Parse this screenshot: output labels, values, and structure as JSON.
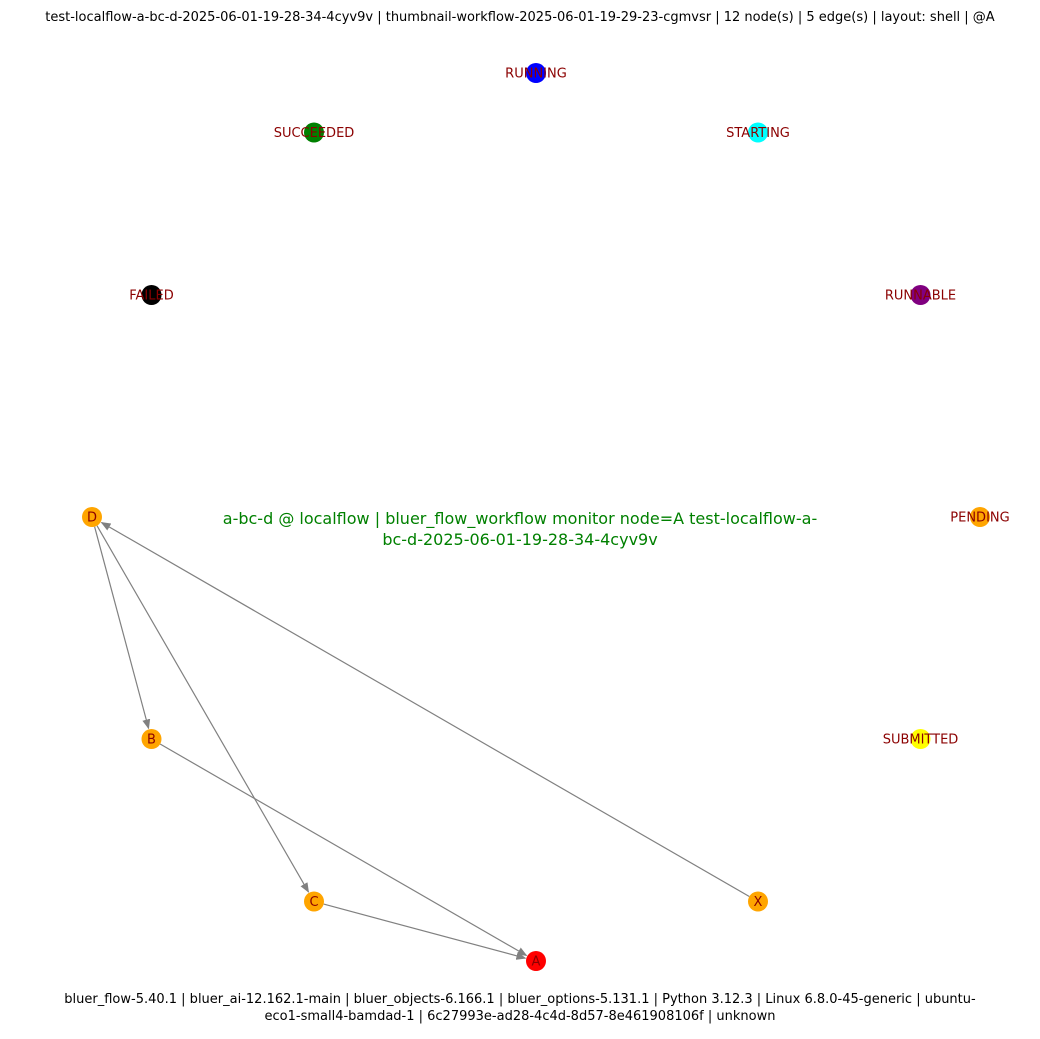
{
  "header": {
    "title": "test-localflow-a-bc-d-2025-06-01-19-28-34-4cyv9v | thumbnail-workflow-2025-06-01-19-29-23-cgmvsr | 12 node(s) | 5 edge(s) | layout: shell | @A"
  },
  "diagram": {
    "caption_lines": [
      "a-bc-d @ localflow | bluer_flow_workflow monitor node=A test-localflow-a-",
      "bc-d-2025-06-01-19-28-34-4cyv9v"
    ],
    "caption_color": "#008000",
    "label_color_status": "#8b0000",
    "label_color_node": "#8b0000",
    "edge_color": "#808080",
    "nodes": [
      {
        "id": "RUNNING",
        "label": "RUNNING",
        "color": "#0000ff",
        "kind": "status"
      },
      {
        "id": "STARTING",
        "label": "STARTING",
        "color": "#00ffff",
        "kind": "status"
      },
      {
        "id": "RUNNABLE",
        "label": "RUNNABLE",
        "color": "#800080",
        "kind": "status"
      },
      {
        "id": "PENDING",
        "label": "PENDING",
        "color": "#ffa500",
        "kind": "status"
      },
      {
        "id": "SUBMITTED",
        "label": "SUBMITTED",
        "color": "#ffff00",
        "kind": "status"
      },
      {
        "id": "X",
        "label": "X",
        "color": "#ffa500",
        "kind": "job"
      },
      {
        "id": "A",
        "label": "A",
        "color": "#ff0000",
        "kind": "job"
      },
      {
        "id": "C",
        "label": "C",
        "color": "#ffa500",
        "kind": "job"
      },
      {
        "id": "B",
        "label": "B",
        "color": "#ffa500",
        "kind": "job"
      },
      {
        "id": "D",
        "label": "D",
        "color": "#ffa500",
        "kind": "job"
      },
      {
        "id": "FAILED",
        "label": "FAILED",
        "color": "#000000",
        "kind": "status"
      },
      {
        "id": "SUCCEEDED",
        "label": "SUCCEEDED",
        "color": "#008000",
        "kind": "status"
      }
    ],
    "edges": [
      {
        "from": "D",
        "to": "B"
      },
      {
        "from": "D",
        "to": "C"
      },
      {
        "from": "B",
        "to": "A"
      },
      {
        "from": "C",
        "to": "A"
      },
      {
        "from": "X",
        "to": "D"
      }
    ]
  },
  "footer": {
    "lines": [
      "bluer_flow-5.40.1 | bluer_ai-12.162.1-main | bluer_objects-6.166.1 | bluer_options-5.131.1 | Python 3.12.3 | Linux 6.8.0-45-generic | ubuntu-",
      "eco1-small4-bamdad-1 | 6c27993e-ad28-4c4d-8d57-8e461908106f | unknown"
    ]
  }
}
